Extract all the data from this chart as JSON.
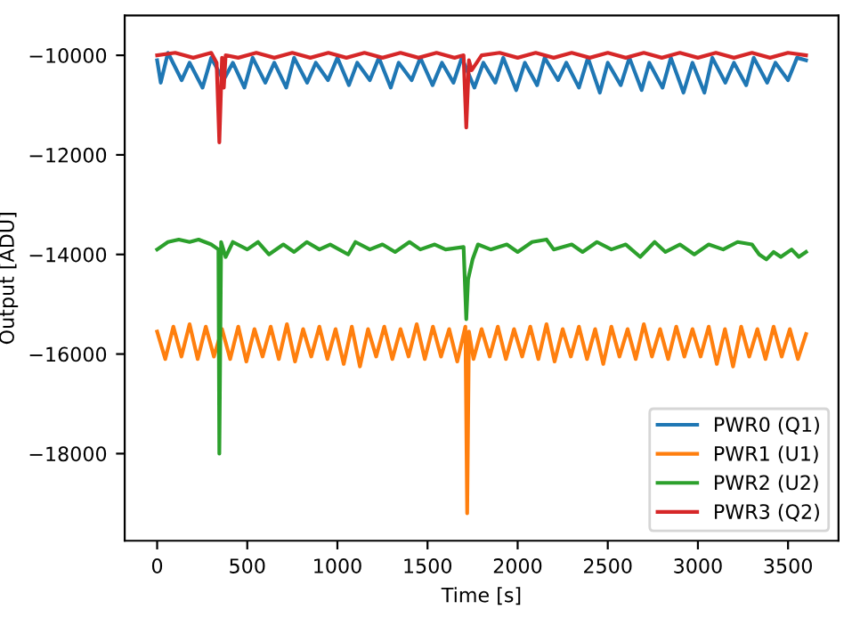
{
  "chart_data": {
    "type": "line",
    "xlabel": "Time [s]",
    "ylabel": "Output [ADU]",
    "xlim": [
      -180,
      3780
    ],
    "ylim": [
      -19750,
      -9200
    ],
    "xticks": [
      0,
      500,
      1000,
      1500,
      2000,
      2500,
      3000,
      3500
    ],
    "yticks": [
      -18000,
      -16000,
      -14000,
      -12000,
      -10000
    ],
    "legend": "bottom right",
    "grid": false,
    "series": [
      {
        "name": "PWR0 (Q1)",
        "color": "#1f77b4",
        "x": [
          0,
          20,
          60,
          136,
          180,
          252,
          300,
          368,
          420,
          484,
          530,
          600,
          650,
          716,
          760,
          832,
          880,
          948,
          1000,
          1064,
          1110,
          1180,
          1230,
          1296,
          1340,
          1412,
          1460,
          1528,
          1580,
          1644,
          1690,
          1760,
          1810,
          1876,
          1920,
          1992,
          2040,
          2108,
          2150,
          2224,
          2270,
          2340,
          2390,
          2456,
          2500,
          2572,
          2620,
          2688,
          2730,
          2804,
          2850,
          2920,
          2970,
          3036,
          3080,
          3152,
          3200,
          3268,
          3310,
          3384,
          3430,
          3500,
          3550,
          3600
        ],
        "values": [
          -10100,
          -10550,
          -9950,
          -10500,
          -10150,
          -10650,
          -10050,
          -10500,
          -10150,
          -10650,
          -10050,
          -10550,
          -10150,
          -10650,
          -10050,
          -10550,
          -10150,
          -10500,
          -10050,
          -10600,
          -10150,
          -10500,
          -10050,
          -10650,
          -10150,
          -10500,
          -10050,
          -10600,
          -10150,
          -10550,
          -10050,
          -10650,
          -10150,
          -10550,
          -10050,
          -10700,
          -10150,
          -10600,
          -10050,
          -10500,
          -10150,
          -10650,
          -10050,
          -10750,
          -10150,
          -10600,
          -10050,
          -10700,
          -10150,
          -10650,
          -10050,
          -10750,
          -10150,
          -10750,
          -10050,
          -10550,
          -10150,
          -10600,
          -10050,
          -10550,
          -10150,
          -10500,
          -10050,
          -10100
        ]
      },
      {
        "name": "PWR1 (U1)",
        "color": "#ff7f0e",
        "x": [
          0,
          45,
          90,
          135,
          180,
          225,
          270,
          315,
          360,
          405,
          450,
          495,
          540,
          585,
          630,
          675,
          720,
          765,
          810,
          855,
          900,
          945,
          990,
          1035,
          1080,
          1125,
          1170,
          1215,
          1260,
          1305,
          1350,
          1395,
          1440,
          1485,
          1530,
          1575,
          1620,
          1665,
          1710,
          1720,
          1730,
          1755,
          1800,
          1845,
          1890,
          1935,
          1980,
          2025,
          2070,
          2115,
          2160,
          2205,
          2250,
          2295,
          2340,
          2385,
          2430,
          2475,
          2520,
          2565,
          2610,
          2655,
          2700,
          2745,
          2790,
          2835,
          2880,
          2925,
          2970,
          3015,
          3060,
          3105,
          3150,
          3195,
          3240,
          3285,
          3330,
          3375,
          3420,
          3465,
          3510,
          3555,
          3600
        ],
        "values": [
          -15550,
          -16100,
          -15450,
          -16050,
          -15400,
          -16100,
          -15450,
          -16050,
          -15500,
          -16100,
          -15450,
          -16150,
          -15500,
          -16050,
          -15450,
          -16100,
          -15400,
          -16150,
          -15500,
          -16050,
          -15450,
          -16100,
          -15500,
          -16200,
          -15450,
          -16250,
          -15500,
          -16050,
          -15450,
          -16100,
          -15500,
          -16050,
          -15400,
          -16100,
          -15450,
          -16050,
          -15500,
          -16150,
          -15450,
          -19200,
          -15550,
          -16100,
          -15500,
          -16050,
          -15450,
          -16100,
          -15500,
          -16050,
          -15450,
          -16100,
          -15400,
          -16150,
          -15500,
          -16050,
          -15450,
          -16100,
          -15500,
          -16200,
          -15450,
          -16050,
          -15500,
          -16100,
          -15400,
          -16050,
          -15500,
          -16100,
          -15450,
          -16050,
          -15500,
          -16050,
          -15450,
          -16200,
          -15500,
          -16250,
          -15450,
          -16050,
          -15500,
          -16100,
          -15450,
          -16050,
          -15500,
          -16100,
          -15600
        ]
      },
      {
        "name": "PWR2 (U2)",
        "color": "#2ca02c",
        "x": [
          0,
          60,
          120,
          180,
          230,
          300,
          340,
          345,
          355,
          380,
          420,
          500,
          560,
          620,
          700,
          760,
          830,
          900,
          960,
          1060,
          1100,
          1180,
          1250,
          1320,
          1400,
          1460,
          1540,
          1600,
          1700,
          1715,
          1725,
          1750,
          1780,
          1850,
          1940,
          2000,
          2080,
          2160,
          2200,
          2300,
          2360,
          2440,
          2520,
          2600,
          2680,
          2760,
          2820,
          2900,
          2980,
          3060,
          3140,
          3220,
          3300,
          3340,
          3380,
          3420,
          3460,
          3520,
          3560,
          3600
        ],
        "values": [
          -13900,
          -13750,
          -13700,
          -13750,
          -13700,
          -13800,
          -13900,
          -18000,
          -13750,
          -14050,
          -13750,
          -13900,
          -13750,
          -14000,
          -13800,
          -13950,
          -13750,
          -13900,
          -13800,
          -14000,
          -13750,
          -13900,
          -13800,
          -13950,
          -13750,
          -13900,
          -13800,
          -13900,
          -13850,
          -15300,
          -14500,
          -14100,
          -13800,
          -13900,
          -13800,
          -13950,
          -13750,
          -13700,
          -13900,
          -13800,
          -13950,
          -13750,
          -13900,
          -13800,
          -14050,
          -13750,
          -13950,
          -13800,
          -14000,
          -13800,
          -13900,
          -13750,
          -13800,
          -14000,
          -14100,
          -13950,
          -14050,
          -13900,
          -14050,
          -13950
        ]
      },
      {
        "name": "PWR3 (Q2)",
        "color": "#d62728",
        "x": [
          0,
          100,
          200,
          300,
          330,
          345,
          360,
          370,
          380,
          450,
          550,
          650,
          750,
          850,
          950,
          1050,
          1150,
          1250,
          1350,
          1450,
          1550,
          1650,
          1700,
          1715,
          1730,
          1745,
          1800,
          1900,
          2000,
          2100,
          2200,
          2300,
          2400,
          2500,
          2600,
          2700,
          2800,
          2900,
          3000,
          3100,
          3200,
          3300,
          3400,
          3500,
          3600
        ],
        "values": [
          -10000,
          -9950,
          -10050,
          -9950,
          -10150,
          -11750,
          -10050,
          -10650,
          -10000,
          -10050,
          -9950,
          -10050,
          -9950,
          -10050,
          -9950,
          -10050,
          -9950,
          -10050,
          -9950,
          -10050,
          -9950,
          -10050,
          -10000,
          -11450,
          -10100,
          -10300,
          -10000,
          -9950,
          -10050,
          -9950,
          -10050,
          -9950,
          -10050,
          -9950,
          -10050,
          -9950,
          -10050,
          -9950,
          -10050,
          -9950,
          -10050,
          -9950,
          -10050,
          -9950,
          -10000
        ]
      }
    ]
  }
}
